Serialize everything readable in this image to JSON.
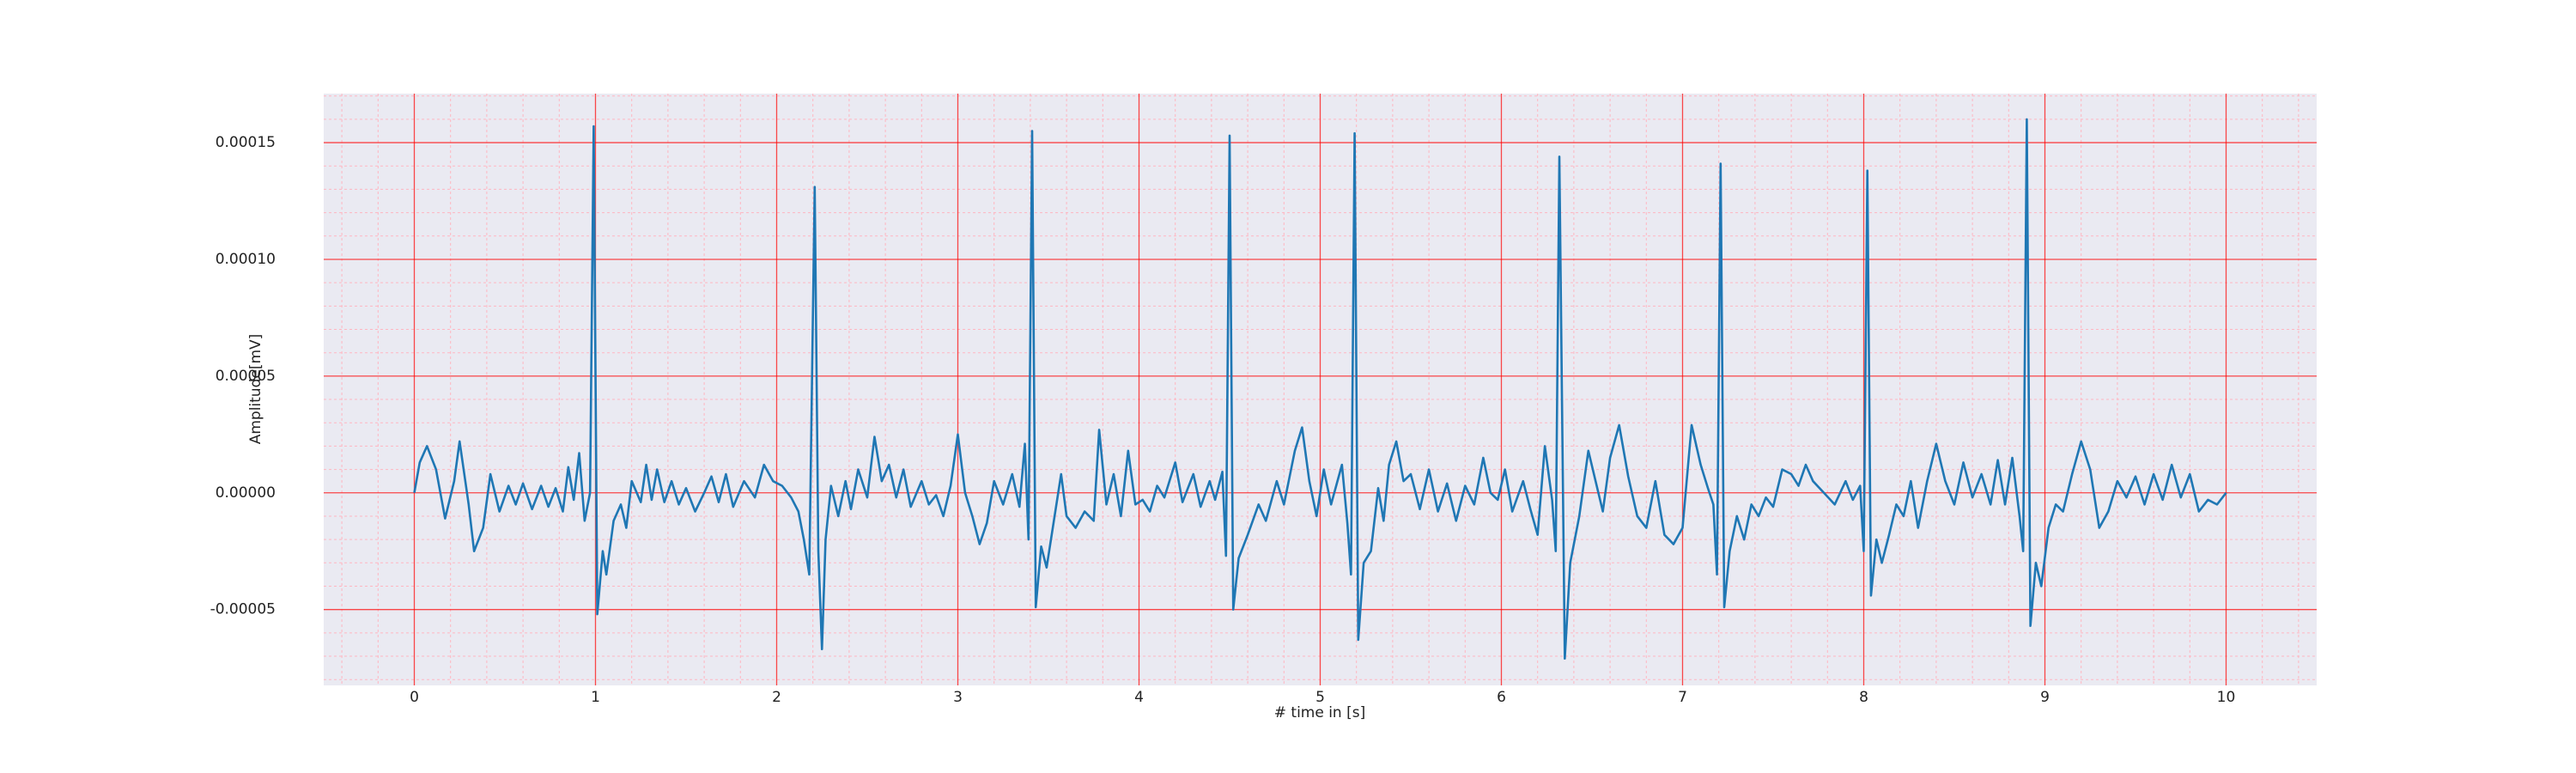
{
  "chart_data": {
    "type": "line",
    "xlabel": "# time in [s]",
    "ylabel": "Amplitude[mV]",
    "xlim": [
      -0.5,
      10.5
    ],
    "ylim": [
      -8.25e-05,
      0.000171
    ],
    "xticks": [
      0,
      1,
      2,
      3,
      4,
      5,
      6,
      7,
      8,
      9,
      10
    ],
    "yticks": [
      {
        "value": -5e-05,
        "label": "-0.00005"
      },
      {
        "value": 0,
        "label": "0.00000"
      },
      {
        "value": 5e-05,
        "label": "0.00005"
      },
      {
        "value": 0.0001,
        "label": "0.00010"
      },
      {
        "value": 0.00015,
        "label": "0.00015"
      }
    ],
    "grid": true,
    "minor_grid": true,
    "series": [
      {
        "color": "#1f77b4",
        "x": [
          0,
          0.03,
          0.07,
          0.12,
          0.17,
          0.22,
          0.25,
          0.3,
          0.33,
          0.38,
          0.42,
          0.47,
          0.52,
          0.56,
          0.6,
          0.65,
          0.7,
          0.74,
          0.78,
          0.82,
          0.85,
          0.88,
          0.91,
          0.94,
          0.97,
          0.99,
          1.01,
          1.04,
          1.06,
          1.1,
          1.14,
          1.17,
          1.2,
          1.25,
          1.28,
          1.31,
          1.34,
          1.38,
          1.42,
          1.46,
          1.5,
          1.55,
          1.6,
          1.64,
          1.68,
          1.72,
          1.76,
          1.82,
          1.88,
          1.93,
          1.98,
          2.03,
          2.08,
          2.12,
          2.15,
          2.18,
          2.21,
          2.23,
          2.25,
          2.27,
          2.3,
          2.34,
          2.38,
          2.41,
          2.45,
          2.5,
          2.54,
          2.58,
          2.62,
          2.66,
          2.7,
          2.74,
          2.8,
          2.84,
          2.88,
          2.92,
          2.96,
          3.0,
          3.04,
          3.08,
          3.12,
          3.16,
          3.2,
          3.25,
          3.3,
          3.34,
          3.37,
          3.39,
          3.41,
          3.43,
          3.46,
          3.49,
          3.53,
          3.57,
          3.6,
          3.65,
          3.7,
          3.75,
          3.78,
          3.82,
          3.86,
          3.9,
          3.94,
          3.98,
          4.02,
          4.06,
          4.1,
          4.14,
          4.2,
          4.24,
          4.3,
          4.34,
          4.39,
          4.42,
          4.46,
          4.48,
          4.5,
          4.52,
          4.55,
          4.6,
          4.66,
          4.7,
          4.76,
          4.8,
          4.86,
          4.9,
          4.94,
          4.98,
          5.02,
          5.06,
          5.12,
          5.15,
          5.17,
          5.19,
          5.21,
          5.24,
          5.28,
          5.32,
          5.35,
          5.38,
          5.42,
          5.46,
          5.5,
          5.55,
          5.6,
          5.65,
          5.7,
          5.75,
          5.8,
          5.85,
          5.9,
          5.94,
          5.98,
          6.02,
          6.06,
          6.12,
          6.16,
          6.2,
          6.24,
          6.28,
          6.3,
          6.32,
          6.35,
          6.38,
          6.43,
          6.48,
          6.52,
          6.56,
          6.6,
          6.65,
          6.7,
          6.75,
          6.8,
          6.85,
          6.9,
          6.95,
          7.0,
          7.05,
          7.1,
          7.14,
          7.17,
          7.19,
          7.21,
          7.23,
          7.26,
          7.3,
          7.34,
          7.38,
          7.42,
          7.46,
          7.5,
          7.55,
          7.6,
          7.64,
          7.68,
          7.72,
          7.78,
          7.84,
          7.9,
          7.94,
          7.98,
          8.0,
          8.02,
          8.04,
          8.07,
          8.1,
          8.14,
          8.18,
          8.22,
          8.26,
          8.3,
          8.35,
          8.4,
          8.45,
          8.5,
          8.55,
          8.6,
          8.65,
          8.7,
          8.74,
          8.78,
          8.82,
          8.86,
          8.88,
          8.9,
          8.92,
          8.95,
          8.98,
          9.02,
          9.06,
          9.1,
          9.15,
          9.2,
          9.25,
          9.3,
          9.35,
          9.4,
          9.45,
          9.5,
          9.55,
          9.6,
          9.65,
          9.7,
          9.75,
          9.8,
          9.85,
          9.9,
          9.95,
          10.0
        ],
        "values": [
          0,
          1.3e-05,
          2e-05,
          1e-05,
          -1.1e-05,
          5e-06,
          2.2e-05,
          -5e-06,
          -2.5e-05,
          -1.5e-05,
          8e-06,
          -8e-06,
          3e-06,
          -5e-06,
          4e-06,
          -7e-06,
          3e-06,
          -6e-06,
          2e-06,
          -8e-06,
          1.1e-05,
          -3e-06,
          1.7e-05,
          -1.2e-05,
          0,
          0.000157,
          -5.2e-05,
          -2.5e-05,
          -3.5e-05,
          -1.2e-05,
          -5e-06,
          -1.5e-05,
          5e-06,
          -4e-06,
          1.2e-05,
          -3e-06,
          1e-05,
          -4e-06,
          5e-06,
          -5e-06,
          2e-06,
          -8e-06,
          0,
          7e-06,
          -4e-06,
          8e-06,
          -6e-06,
          5e-06,
          -2e-06,
          1.2e-05,
          5e-06,
          3e-06,
          -2e-06,
          -8e-06,
          -2e-05,
          -3.5e-05,
          0.000131,
          -2.5e-05,
          -6.7e-05,
          -2e-05,
          3e-06,
          -1e-05,
          5e-06,
          -7e-06,
          1e-05,
          -2e-06,
          2.4e-05,
          5e-06,
          1.2e-05,
          -2e-06,
          1e-05,
          -6e-06,
          5e-06,
          -5e-06,
          -1e-06,
          -1e-05,
          3e-06,
          2.5e-05,
          0,
          -1e-05,
          -2.2e-05,
          -1.3e-05,
          5e-06,
          -5e-06,
          8e-06,
          -6e-06,
          2.1e-05,
          -2e-05,
          0.000155,
          -4.9e-05,
          -2.3e-05,
          -3.2e-05,
          -1.2e-05,
          8e-06,
          -1e-05,
          -1.5e-05,
          -8e-06,
          -1.2e-05,
          2.7e-05,
          -5e-06,
          8e-06,
          -1e-05,
          1.8e-05,
          -5e-06,
          -3e-06,
          -8e-06,
          3e-06,
          -2e-06,
          1.3e-05,
          -4e-06,
          8e-06,
          -6e-06,
          5e-06,
          -3e-06,
          9e-06,
          -2.7e-05,
          0.000153,
          -5e-05,
          -2.8e-05,
          -1.8e-05,
          -5e-06,
          -1.2e-05,
          5e-06,
          -5e-06,
          1.8e-05,
          2.8e-05,
          5e-06,
          -1e-05,
          1e-05,
          -5e-06,
          1.2e-05,
          -1.3e-05,
          -3.5e-05,
          0.000154,
          -6.3e-05,
          -3e-05,
          -2.5e-05,
          2e-06,
          -1.2e-05,
          1.2e-05,
          2.2e-05,
          5e-06,
          8e-06,
          -7e-06,
          1e-05,
          -8e-06,
          4e-06,
          -1.2e-05,
          3e-06,
          -5e-06,
          1.5e-05,
          0,
          -3e-06,
          1e-05,
          -8e-06,
          5e-06,
          -7e-06,
          -1.8e-05,
          2e-05,
          -3e-06,
          -2.5e-05,
          0.000144,
          -7.1e-05,
          -3e-05,
          -1e-05,
          1.8e-05,
          5e-06,
          -8e-06,
          1.5e-05,
          2.9e-05,
          7e-06,
          -1e-05,
          -1.5e-05,
          5e-06,
          -1.8e-05,
          -2.2e-05,
          -1.5e-05,
          2.9e-05,
          1.2e-05,
          2e-06,
          -5e-06,
          -3.5e-05,
          0.000141,
          -4.9e-05,
          -2.5e-05,
          -1e-05,
          -2e-05,
          -5e-06,
          -1e-05,
          -2e-06,
          -6e-06,
          1e-05,
          8e-06,
          3e-06,
          1.2e-05,
          5e-06,
          0,
          -5e-06,
          5e-06,
          -3e-06,
          3e-06,
          -2.5e-05,
          0.000138,
          -4.4e-05,
          -2e-05,
          -3e-05,
          -1.8e-05,
          -5e-06,
          -1e-05,
          5e-06,
          -1.5e-05,
          5e-06,
          2.1e-05,
          5e-06,
          -5e-06,
          1.3e-05,
          -2e-06,
          8e-06,
          -5e-06,
          1.4e-05,
          -5e-06,
          1.5e-05,
          -1e-05,
          -2.5e-05,
          0.00016,
          -5.7e-05,
          -3e-05,
          -4e-05,
          -1.5e-05,
          -5e-06,
          -8e-06,
          8e-06,
          2.2e-05,
          1e-05,
          -1.5e-05,
          -8e-06,
          5e-06,
          -2e-06,
          7e-06,
          -5e-06,
          8e-06,
          -3e-06,
          1.2e-05,
          -2e-06,
          8e-06,
          -8e-06,
          -3e-06,
          -5e-06,
          0
        ]
      }
    ]
  }
}
